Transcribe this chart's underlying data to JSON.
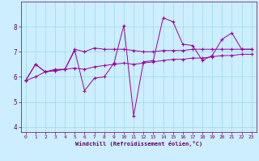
{
  "xlabel": "Windchill (Refroidissement éolien,°C)",
  "background_color": "#cceeff",
  "grid_color": "#99dddd",
  "line_color": "#990099",
  "axis_color": "#660066",
  "xlim": [
    -0.5,
    23.5
  ],
  "ylim": [
    3.8,
    9.0
  ],
  "yticks": [
    4,
    5,
    6,
    7,
    8
  ],
  "xticks": [
    0,
    1,
    2,
    3,
    4,
    5,
    6,
    7,
    8,
    9,
    10,
    11,
    12,
    13,
    14,
    15,
    16,
    17,
    18,
    19,
    20,
    21,
    22,
    23
  ],
  "series": [
    {
      "x": [
        0,
        1,
        2,
        3,
        4,
        5,
        6,
        7,
        8,
        9,
        10,
        11,
        12,
        13,
        14,
        15,
        16,
        17,
        18,
        19,
        20,
        21,
        22,
        23
      ],
      "y": [
        5.85,
        6.5,
        6.2,
        6.25,
        6.3,
        7.05,
        5.45,
        5.95,
        6.0,
        6.55,
        8.05,
        4.45,
        6.6,
        6.65,
        8.35,
        8.2,
        7.3,
        7.25,
        6.65,
        6.85,
        7.5,
        7.75,
        7.1,
        7.1
      ]
    },
    {
      "x": [
        0,
        1,
        2,
        3,
        4,
        5,
        6,
        7,
        8,
        9,
        10,
        11,
        12,
        13,
        14,
        15,
        16,
        17,
        18,
        19,
        20,
        21,
        22,
        23
      ],
      "y": [
        5.85,
        6.5,
        6.2,
        6.3,
        6.3,
        7.1,
        7.0,
        7.15,
        7.1,
        7.1,
        7.1,
        7.05,
        7.0,
        7.0,
        7.05,
        7.05,
        7.05,
        7.1,
        7.1,
        7.1,
        7.1,
        7.1,
        7.1,
        7.1
      ]
    },
    {
      "x": [
        0,
        1,
        2,
        3,
        4,
        5,
        6,
        7,
        8,
        9,
        10,
        11,
        12,
        13,
        14,
        15,
        16,
        17,
        18,
        19,
        20,
        21,
        22,
        23
      ],
      "y": [
        5.85,
        6.0,
        6.2,
        6.25,
        6.3,
        6.35,
        6.3,
        6.4,
        6.45,
        6.5,
        6.55,
        6.5,
        6.55,
        6.6,
        6.65,
        6.7,
        6.7,
        6.75,
        6.75,
        6.8,
        6.85,
        6.85,
        6.9,
        6.9
      ]
    }
  ]
}
